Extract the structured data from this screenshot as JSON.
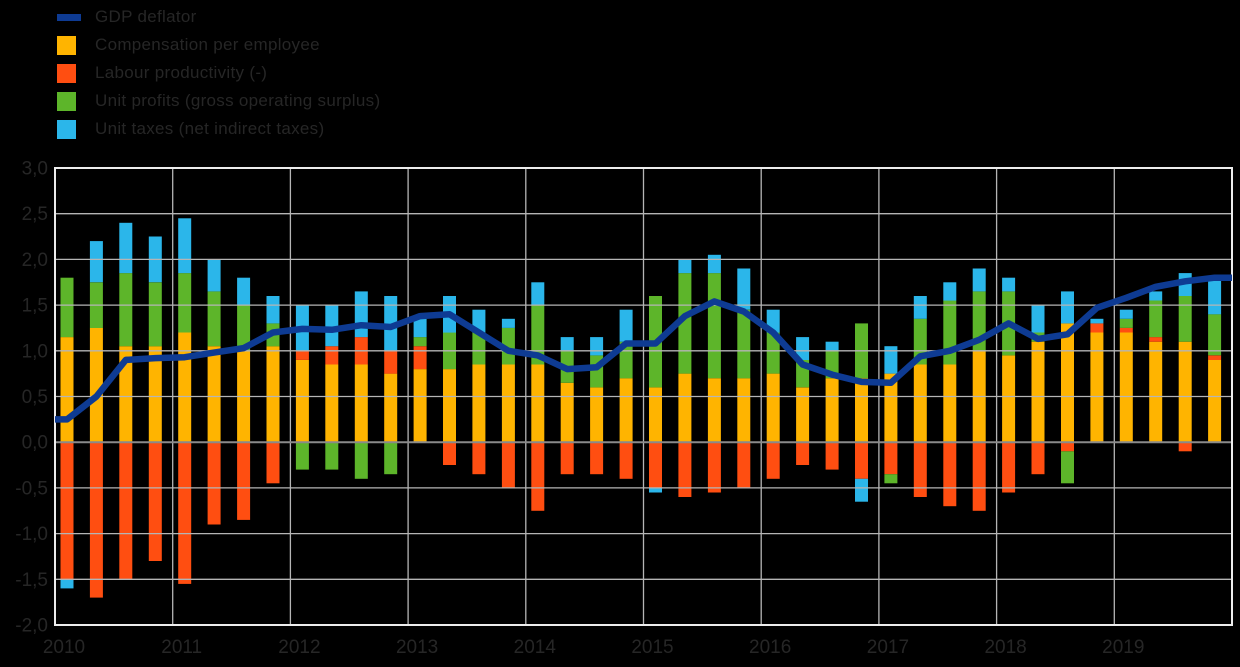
{
  "chart": {
    "background": "#000000",
    "text_color": "#262626",
    "grid_color": "#b5b5b5",
    "border_color": "#ededed",
    "zero_line_color": "#8a8a8a",
    "legend": [
      {
        "label": "GDP deflator",
        "color": "#0e3b93",
        "marker": "line"
      },
      {
        "label": "Compensation per employee",
        "color": "#ffb400",
        "marker": "square"
      },
      {
        "label": "Labour productivity (-)",
        "color": "#ff4e11",
        "marker": "square"
      },
      {
        "label": "Unit profits (gross operating surplus)",
        "color": "#5db52a",
        "marker": "square"
      },
      {
        "label": "Unit taxes (net indirect taxes)",
        "color": "#2bb6ea",
        "marker": "square"
      }
    ],
    "y_axis": {
      "tick_labels": [
        "3,0",
        "2,5",
        "2,0",
        "1,5",
        "1,0",
        "0,5",
        "0,0",
        "-0,5",
        "-1,0",
        "-1,5",
        "-2,0"
      ],
      "tick_values": [
        3.0,
        2.5,
        2.0,
        1.5,
        1.0,
        0.5,
        0.0,
        -0.5,
        -1.0,
        -1.5,
        -2.0
      ],
      "min": -2.0,
      "max": 3.0,
      "step": 0.5
    },
    "x_axis": {
      "year_labels": [
        "2010",
        "2011",
        "2012",
        "2013",
        "2014",
        "2015",
        "2016",
        "2017",
        "2018",
        "2019"
      ],
      "quarters_per_year": 4
    }
  },
  "chart_data": {
    "type": "bar",
    "subtype": "stacked-bars-with-line-overlay",
    "title": "",
    "xlabel": "",
    "ylabel": "",
    "ylim": [
      -2.0,
      3.0
    ],
    "grid": true,
    "legend_position": "top-left",
    "categories": [
      "2010-Q1",
      "2010-Q2",
      "2010-Q3",
      "2010-Q4",
      "2011-Q1",
      "2011-Q2",
      "2011-Q3",
      "2011-Q4",
      "2012-Q1",
      "2012-Q2",
      "2012-Q3",
      "2012-Q4",
      "2013-Q1",
      "2013-Q2",
      "2013-Q3",
      "2013-Q4",
      "2014-Q1",
      "2014-Q2",
      "2014-Q3",
      "2014-Q4",
      "2015-Q1",
      "2015-Q2",
      "2015-Q3",
      "2015-Q4",
      "2016-Q1",
      "2016-Q2",
      "2016-Q3",
      "2016-Q4",
      "2017-Q1",
      "2017-Q2",
      "2017-Q3",
      "2017-Q4",
      "2018-Q1",
      "2018-Q2",
      "2018-Q3",
      "2018-Q4",
      "2019-Q1",
      "2019-Q2",
      "2019-Q3",
      "2019-Q4"
    ],
    "series": [
      {
        "name": "Compensation per employee",
        "type": "bar",
        "color": "#ffb400",
        "values": [
          1.15,
          1.25,
          1.05,
          1.05,
          1.2,
          1.05,
          1.0,
          1.05,
          0.9,
          0.85,
          0.85,
          0.75,
          0.8,
          0.8,
          0.85,
          0.85,
          0.85,
          0.65,
          0.6,
          0.7,
          0.6,
          0.75,
          0.7,
          0.7,
          0.75,
          0.6,
          0.7,
          0.7,
          0.75,
          0.85,
          0.85,
          1.0,
          0.95,
          1.1,
          1.3,
          1.2,
          1.2,
          1.1,
          1.1,
          0.9
        ]
      },
      {
        "name": "Labour productivity (-)",
        "type": "bar",
        "color": "#ff4e11",
        "values": [
          -1.5,
          -1.7,
          -1.5,
          -1.3,
          -1.55,
          -0.9,
          -0.85,
          -0.45,
          0.1,
          0.2,
          0.3,
          0.25,
          0.25,
          -0.25,
          -0.35,
          -0.5,
          -0.75,
          -0.35,
          -0.35,
          -0.4,
          -0.5,
          -0.6,
          -0.55,
          -0.5,
          -0.4,
          -0.25,
          -0.3,
          -0.4,
          -0.35,
          -0.6,
          -0.7,
          -0.75,
          -0.55,
          -0.35,
          -0.1,
          0.1,
          0.05,
          0.05,
          -0.1,
          0.05
        ]
      },
      {
        "name": "Unit profits (gross operating surplus)",
        "type": "bar",
        "color": "#5db52a",
        "values": [
          0.65,
          0.5,
          0.8,
          0.7,
          0.65,
          0.6,
          0.5,
          0.25,
          -0.3,
          -0.3,
          -0.4,
          -0.35,
          0.1,
          0.4,
          0.35,
          0.4,
          0.65,
          0.35,
          0.35,
          0.4,
          1.0,
          1.1,
          1.15,
          0.75,
          0.45,
          0.3,
          0.3,
          0.6,
          -0.1,
          0.5,
          0.7,
          0.65,
          0.7,
          0.1,
          -0.35,
          0.0,
          0.1,
          0.4,
          0.5,
          0.45
        ]
      },
      {
        "name": "Unit taxes (net indirect taxes)",
        "type": "bar",
        "color": "#2bb6ea",
        "values": [
          -0.1,
          0.45,
          0.55,
          0.5,
          0.6,
          0.35,
          0.3,
          0.3,
          0.5,
          0.45,
          0.5,
          0.6,
          0.2,
          0.4,
          0.25,
          0.1,
          0.25,
          0.15,
          0.2,
          0.35,
          -0.05,
          0.15,
          0.2,
          0.45,
          0.25,
          0.25,
          0.1,
          -0.25,
          0.3,
          0.25,
          0.2,
          0.25,
          0.15,
          0.3,
          0.35,
          0.05,
          0.1,
          0.1,
          0.25,
          0.4
        ]
      },
      {
        "name": "GDP deflator",
        "type": "line",
        "color": "#0e3b93",
        "values": [
          0.25,
          0.5,
          0.9,
          0.92,
          0.93,
          0.98,
          1.03,
          1.2,
          1.24,
          1.23,
          1.28,
          1.26,
          1.38,
          1.4,
          1.2,
          1.0,
          0.95,
          0.8,
          0.82,
          1.08,
          1.08,
          1.38,
          1.54,
          1.43,
          1.2,
          0.85,
          0.74,
          0.66,
          0.65,
          0.94,
          1.0,
          1.12,
          1.3,
          1.13,
          1.18,
          1.47,
          1.58,
          1.7,
          1.76,
          1.8
        ]
      }
    ]
  }
}
